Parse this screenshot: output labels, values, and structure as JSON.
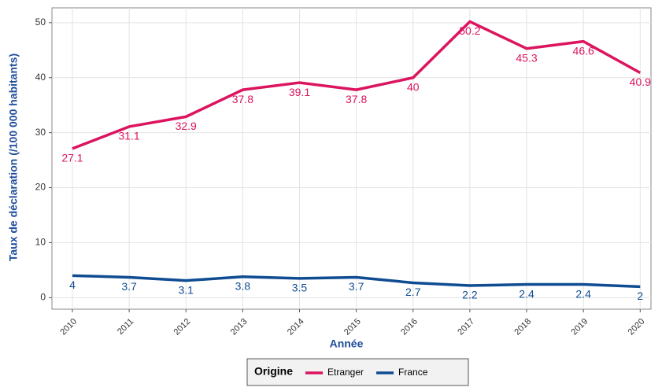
{
  "chart_data": {
    "type": "line",
    "x": [
      2010,
      2011,
      2012,
      2013,
      2014,
      2015,
      2016,
      2017,
      2018,
      2019,
      2020
    ],
    "xlim": [
      2009.64,
      2020.19
    ],
    "xticks": [
      2010,
      2011,
      2012,
      2013,
      2014,
      2015,
      2016,
      2017,
      2018,
      2019,
      2020
    ],
    "ylim": [
      -2.1,
      52.7
    ],
    "yticks": [
      0,
      10,
      20,
      30,
      40,
      50
    ],
    "x_label": "Année",
    "y_label": "Taux de déclaration (/100 000 habitants)",
    "legend_title": "Origine",
    "legend": "bottom",
    "grid": true,
    "series": [
      {
        "name": "Etranger",
        "color": "#dc1460",
        "values": [
          27.1,
          31.1,
          32.9,
          37.8,
          39.1,
          37.8,
          40,
          50.2,
          45.3,
          46.6,
          40.9
        ]
      },
      {
        "name": "France",
        "color": "#0f4c92",
        "values": [
          4,
          3.7,
          3.1,
          3.8,
          3.5,
          3.7,
          2.7,
          2.2,
          2.4,
          2.4,
          2
        ]
      }
    ]
  }
}
